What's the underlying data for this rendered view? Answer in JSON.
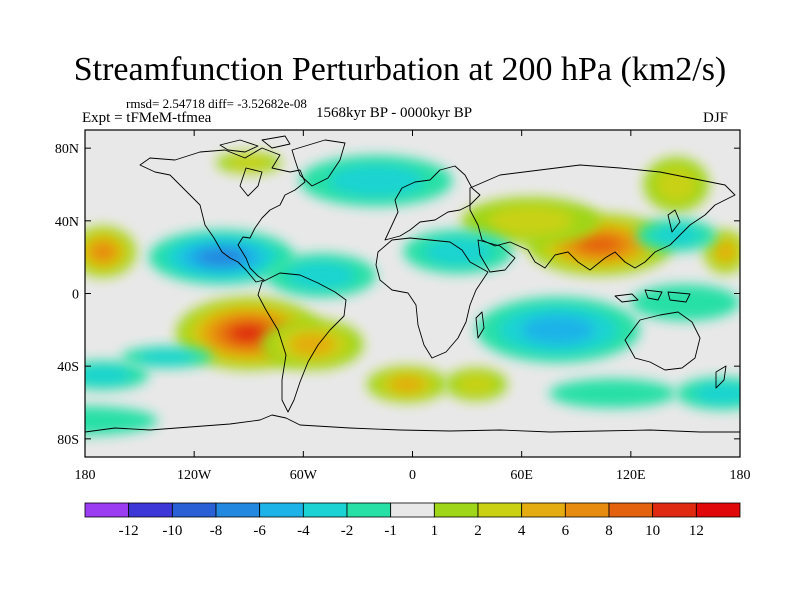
{
  "title": "Streamfunction Perturbation at 200 hPa (km2/s)",
  "stats": "rmsd= 2.54718 diff= -3.52682e-08",
  "experiment": "Expt = tFMeM-tfmea",
  "period": "1568kyr BP - 0000kyr BP",
  "season": "DJF",
  "map": {
    "projection": "cylindrical equidistant",
    "lon_range": [
      -180,
      180
    ],
    "lat_range": [
      -90,
      90
    ],
    "lon_ticks": [
      {
        "value": -180,
        "label": "180"
      },
      {
        "value": -120,
        "label": "120W"
      },
      {
        "value": -60,
        "label": "60W"
      },
      {
        "value": 0,
        "label": "0"
      },
      {
        "value": 60,
        "label": "60E"
      },
      {
        "value": 120,
        "label": "120E"
      },
      {
        "value": 180,
        "label": "180"
      }
    ],
    "lat_ticks": [
      {
        "value": 80,
        "label": "80N"
      },
      {
        "value": 40,
        "label": "40N"
      },
      {
        "value": 0,
        "label": "0"
      },
      {
        "value": -40,
        "label": "40S"
      },
      {
        "value": -80,
        "label": "80S"
      }
    ],
    "background_color": "#e8e8e8",
    "features": [
      {
        "name": "south-america-max",
        "lon": -90,
        "lat": -22,
        "rlon": 40,
        "rlat": 20,
        "value": 11
      },
      {
        "name": "south-atlantic-max",
        "lon": -55,
        "lat": -28,
        "rlon": 28,
        "rlat": 14,
        "value": 4
      },
      {
        "name": "east-pacific-west-max",
        "lon": -170,
        "lat": 23,
        "rlon": 18,
        "rlat": 14,
        "value": 6
      },
      {
        "name": "pacific-east-max",
        "lon": 172,
        "lat": 23,
        "rlon": 12,
        "rlat": 12,
        "value": 4
      },
      {
        "name": "asia-max",
        "lon": 103,
        "lat": 27,
        "rlon": 40,
        "rlat": 17,
        "value": 9
      },
      {
        "name": "asia-arc-max",
        "lon": 65,
        "lat": 40,
        "rlon": 38,
        "rlat": 13,
        "value": 3
      },
      {
        "name": "north-pacific-arc",
        "lon": 145,
        "lat": 60,
        "rlon": 18,
        "rlat": 15,
        "value": 2
      },
      {
        "name": "africa-south-max",
        "lon": -3,
        "lat": -50,
        "rlon": 22,
        "rlat": 10,
        "value": 4
      },
      {
        "name": "south-indian-max",
        "lon": 35,
        "lat": -50,
        "rlon": 17,
        "rlat": 9,
        "value": 3
      },
      {
        "name": "arctic-canada-max",
        "lon": -90,
        "lat": 72,
        "rlon": 18,
        "rlat": 6,
        "value": 3
      },
      {
        "name": "siberia-min",
        "lon": -20,
        "lat": 62,
        "rlon": 42,
        "rlat": 14,
        "value": -2
      },
      {
        "name": "central-america-min",
        "lon": -105,
        "lat": 20,
        "rlon": 40,
        "rlat": 15,
        "value": -7
      },
      {
        "name": "atlantic-north-min",
        "lon": -50,
        "lat": 10,
        "rlon": 30,
        "rlat": 12,
        "value": -3
      },
      {
        "name": "north-africa-min",
        "lon": 25,
        "lat": 23,
        "rlon": 30,
        "rlat": 12,
        "value": -2
      },
      {
        "name": "indian-ocean-min",
        "lon": 80,
        "lat": -20,
        "rlon": 45,
        "rlat": 18,
        "value": -5
      },
      {
        "name": "southwest-pacific-min",
        "lon": -170,
        "lat": -45,
        "rlon": 25,
        "rlat": 8,
        "value": -3
      },
      {
        "name": "south-pacific-min",
        "lon": -135,
        "lat": -35,
        "rlon": 25,
        "rlat": 6,
        "value": -2
      },
      {
        "name": "equatorial-pacific-min",
        "lon": 150,
        "lat": -5,
        "rlon": 30,
        "rlat": 10,
        "value": -1.5
      },
      {
        "name": "pacific-mid-min",
        "lon": 145,
        "lat": 32,
        "rlon": 22,
        "rlat": 9,
        "value": -3
      },
      {
        "name": "southern-ocean-min",
        "lon": -180,
        "lat": -70,
        "rlon": 40,
        "rlat": 8,
        "value": -1.5
      },
      {
        "name": "southern-ocean-east-min",
        "lon": 170,
        "lat": -55,
        "rlon": 25,
        "rlat": 9,
        "value": -2
      },
      {
        "name": "south-indian-belt",
        "lon": 110,
        "lat": -55,
        "rlon": 35,
        "rlat": 8,
        "value": -1.5
      }
    ]
  },
  "colorbar": {
    "levels": [
      "-12",
      "-10",
      "-8",
      "-6",
      "-4",
      "-2",
      "-1",
      "1",
      "2",
      "4",
      "6",
      "8",
      "10",
      "12"
    ],
    "colors": [
      "#9b3bf2",
      "#3d37d8",
      "#2a60d6",
      "#2388e0",
      "#1db3e8",
      "#1ad3d2",
      "#26e0a6",
      "#e8e8e8",
      "#9fd617",
      "#c9d112",
      "#e4ac10",
      "#e68a10",
      "#e4620e",
      "#e02a10",
      "#e00808"
    ]
  }
}
